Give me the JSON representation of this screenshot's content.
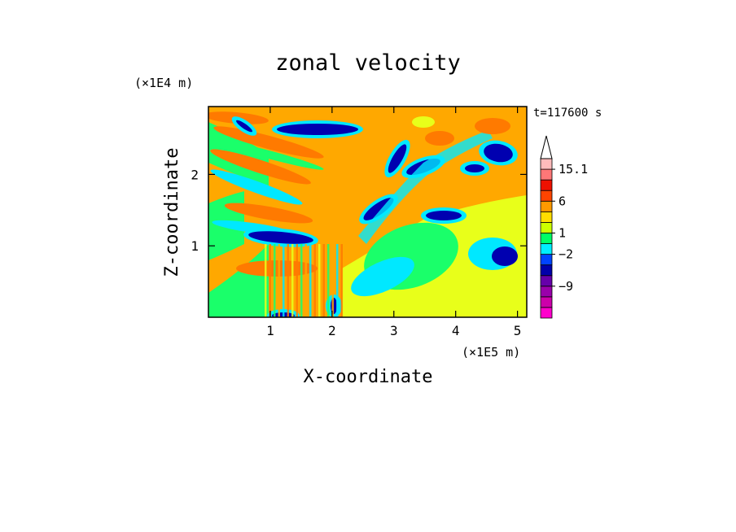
{
  "chart_data": {
    "type": "heatmap",
    "title": "zonal velocity",
    "xlabel": "X-coordinate",
    "ylabel": "Z-coordinate",
    "x_unit": "(×1E5 m)",
    "y_unit": "(×1E4 m)",
    "time_label": "t=117600 s",
    "xlim": [
      0,
      5.15
    ],
    "ylim": [
      0,
      2.95
    ],
    "x_ticks": [
      "1",
      "2",
      "3",
      "4",
      "5"
    ],
    "y_ticks": [
      "1",
      "2"
    ],
    "colorbar": {
      "levels_shown": [
        "15.1",
        "6",
        "1",
        "-2",
        "-9"
      ],
      "colors_bottom_to_top": [
        "#ff00cc",
        "#cc00aa",
        "#9900aa",
        "#6600aa",
        "#0000aa",
        "#0044ff",
        "#00eeff",
        "#00ff66",
        "#ccff00",
        "#ffdd00",
        "#ff9900",
        "#ff4400",
        "#ee1100",
        "#ff7777",
        "#ffbbbb"
      ],
      "extend_top": true
    },
    "grid": false
  },
  "colors": {
    "strong_positive": "#ff7a00",
    "positive": "#ffa800",
    "weak_positive": "#e8ff1a",
    "near_zero": "#1aff6a",
    "weak_negative": "#00e8ff",
    "negative": "#0000b0",
    "strong_negative": "#7a0aa8"
  }
}
